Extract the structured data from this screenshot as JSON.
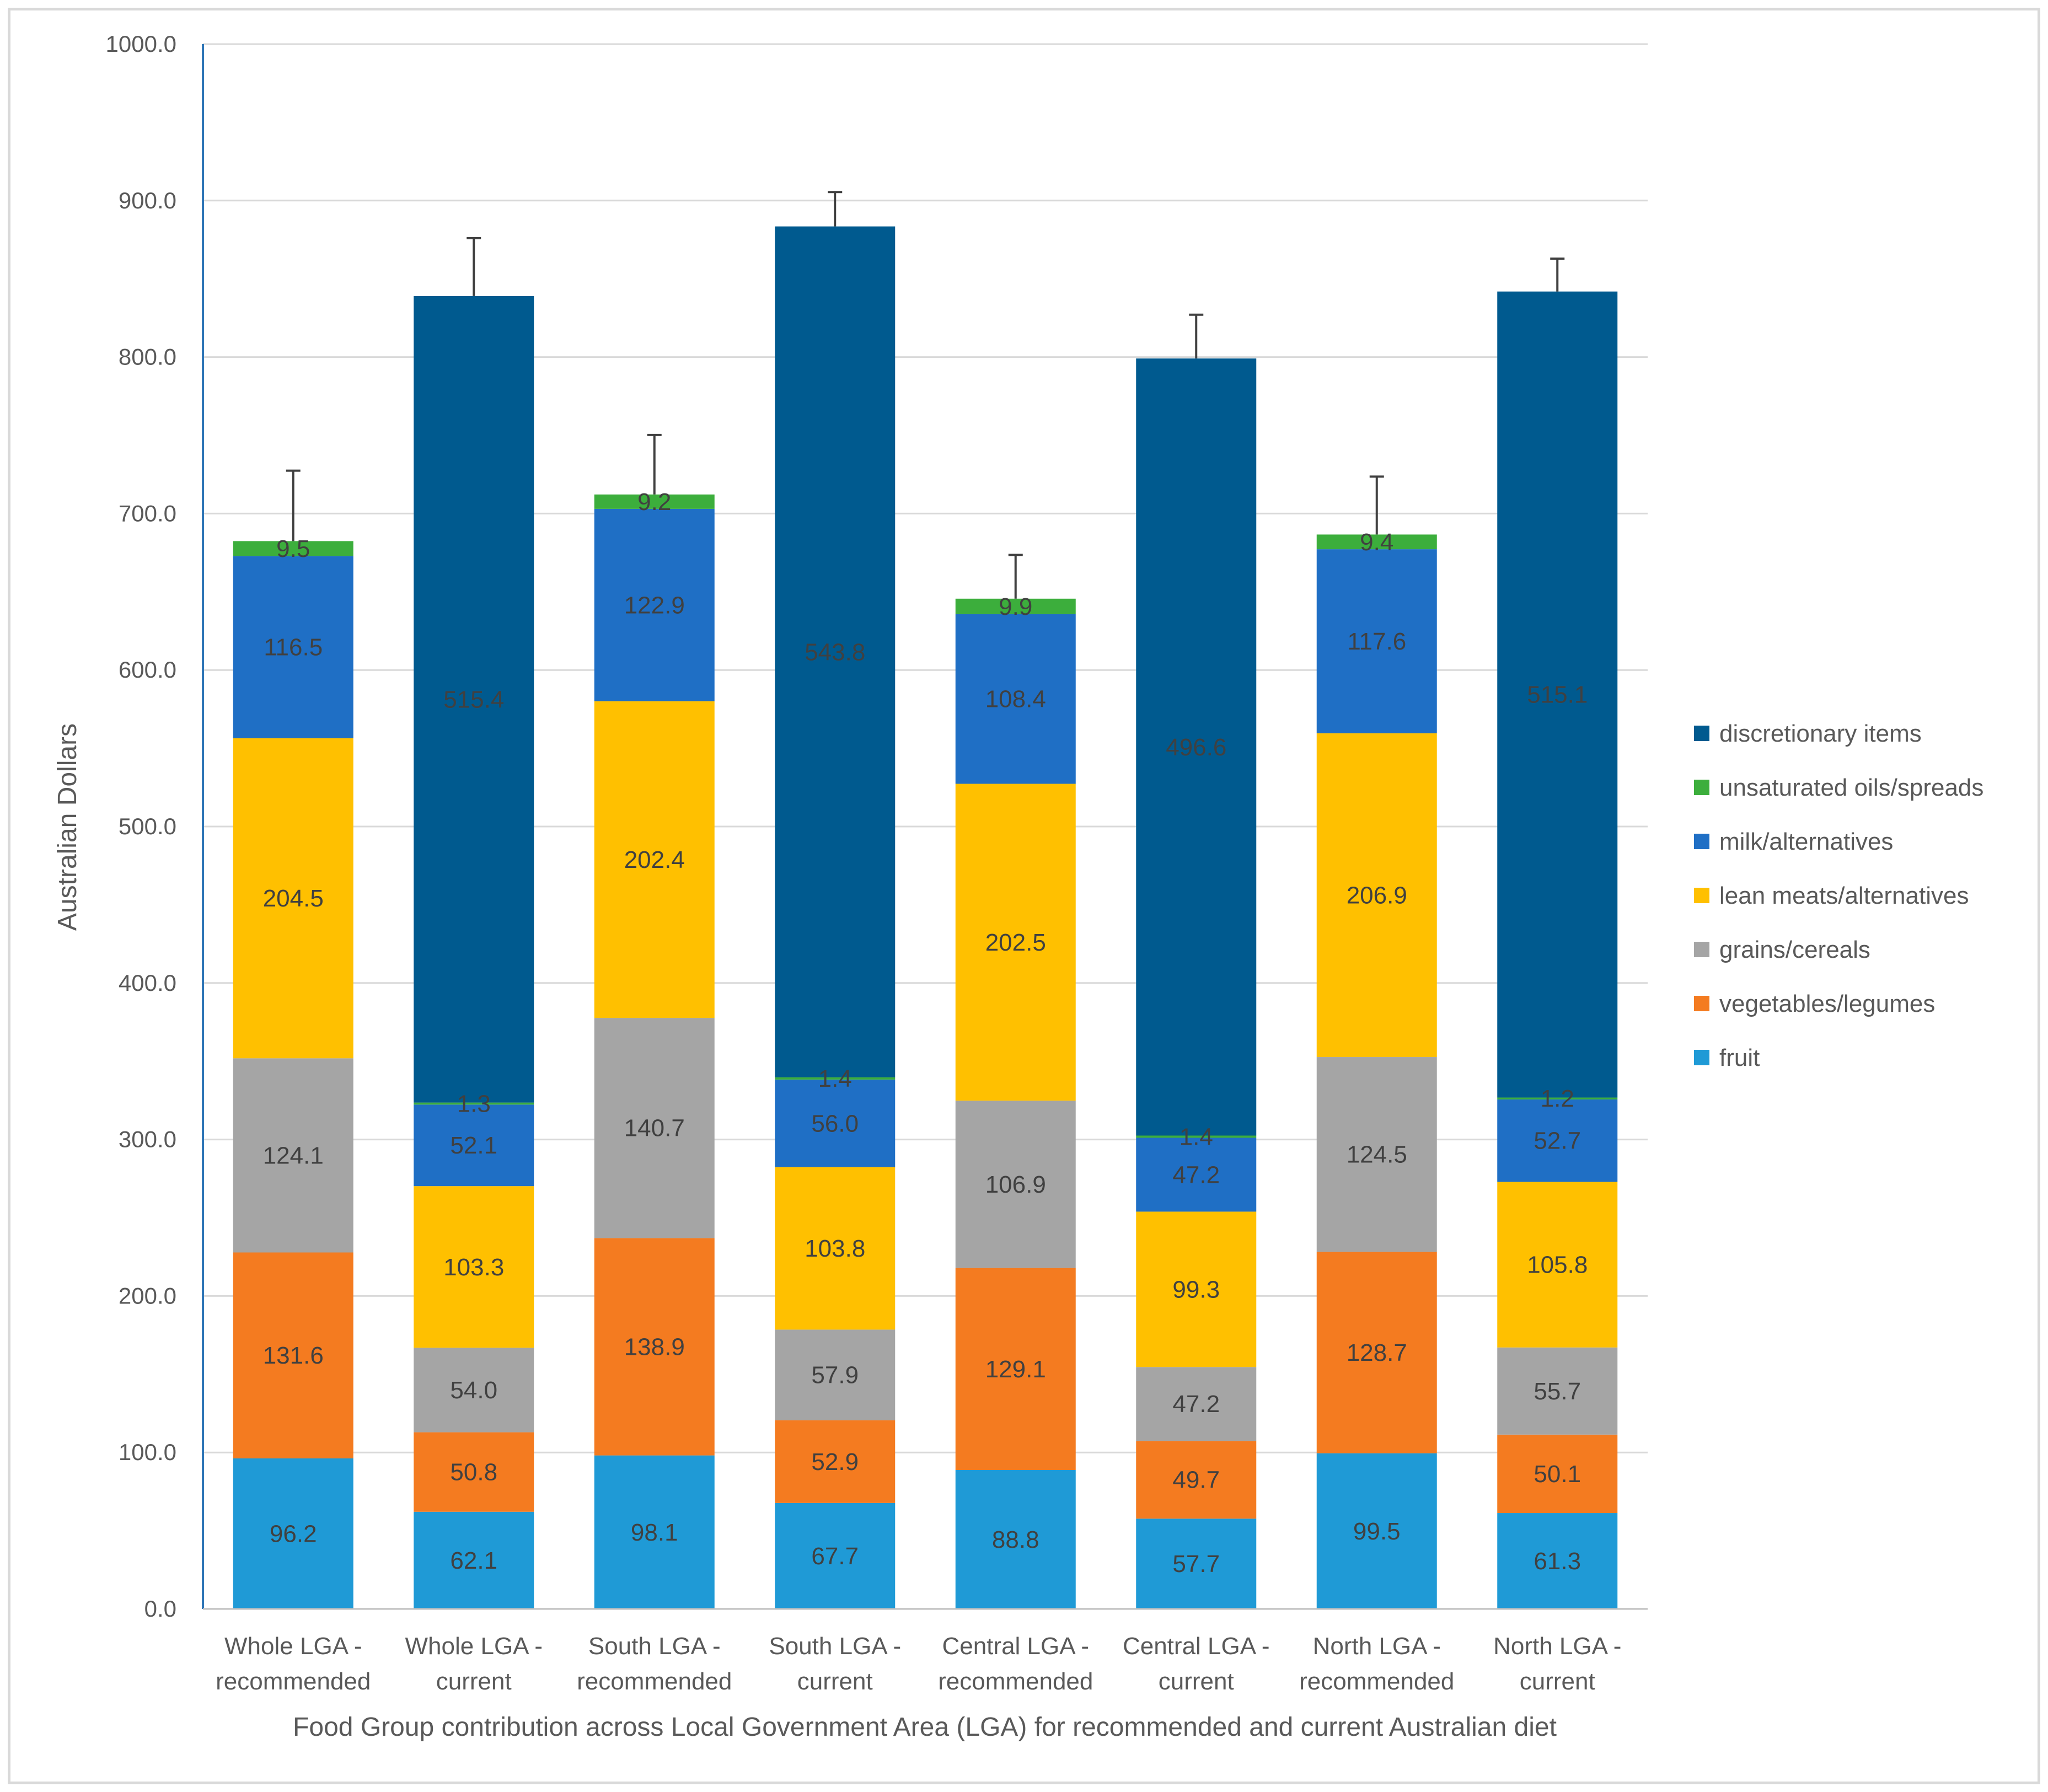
{
  "chart_data": {
    "type": "bar",
    "stacked": true,
    "xlabel": "Food Group contribution across Local Government Area (LGA) for recommended and current Australian diet",
    "ylabel": "Australian Dollars",
    "ylim": [
      0,
      1000
    ],
    "yticks": [
      "0.0",
      "100.0",
      "200.0",
      "300.0",
      "400.0",
      "500.0",
      "600.0",
      "700.0",
      "800.0",
      "900.0",
      "1000.0"
    ],
    "grid": true,
    "legend_position": "right",
    "categories": [
      [
        "Whole LGA -",
        "recommended"
      ],
      [
        "Whole LGA -",
        "current"
      ],
      [
        "South LGA -",
        "recommended"
      ],
      [
        "South LGA -",
        "current"
      ],
      [
        "Central LGA -",
        "recommended"
      ],
      [
        "Central LGA -",
        "current"
      ],
      [
        "North LGA -",
        "recommended"
      ],
      [
        "North LGA -",
        "current"
      ]
    ],
    "series": [
      {
        "name": "fruit",
        "color": "#1f9ad6",
        "values": [
          96.2,
          62.1,
          98.1,
          67.7,
          88.8,
          57.7,
          99.5,
          61.3
        ],
        "labels": [
          "96.2",
          "62.1",
          "98.1",
          "67.7",
          "88.8",
          "57.7",
          "99.5",
          "61.3"
        ]
      },
      {
        "name": "vegetables/legumes",
        "color": "#f47b20",
        "values": [
          131.6,
          50.8,
          138.9,
          52.9,
          129.1,
          49.7,
          128.7,
          50.1
        ],
        "labels": [
          "131.6",
          "50.8",
          "138.9",
          "52.9",
          "129.1",
          "49.7",
          "128.7",
          "50.1"
        ]
      },
      {
        "name": "grains/cereals",
        "color": "#a5a5a5",
        "values": [
          124.1,
          54.0,
          140.7,
          57.9,
          106.9,
          47.2,
          124.5,
          55.7
        ],
        "labels": [
          "124.1",
          "54.0",
          "140.7",
          "57.9",
          "106.9",
          "47.2",
          "124.5",
          "55.7"
        ]
      },
      {
        "name": "lean meats/alternatives",
        "color": "#ffc000",
        "values": [
          204.5,
          103.3,
          202.4,
          103.8,
          202.5,
          99.3,
          206.9,
          105.8
        ],
        "labels": [
          "204.5",
          "103.3",
          "202.4",
          "103.8",
          "202.5",
          "99.3",
          "206.9",
          "105.8"
        ]
      },
      {
        "name": "milk/alternatives",
        "color": "#1f6fc5",
        "values": [
          116.5,
          52.1,
          122.9,
          56.0,
          108.4,
          47.2,
          117.6,
          52.7
        ],
        "labels": [
          "116.5",
          "52.1",
          "122.9",
          "56.0",
          "108.4",
          "47.2",
          "117.6",
          "52.7"
        ]
      },
      {
        "name": "unsaturated oils/spreads",
        "color": "#3cae3c",
        "values": [
          9.5,
          1.3,
          9.2,
          1.4,
          9.9,
          1.4,
          9.4,
          1.2
        ],
        "labels": [
          "9.5",
          "1.3",
          "9.2",
          "1.4",
          "9.9",
          "1.4",
          "9.4",
          "1.2"
        ]
      },
      {
        "name": "discretionary items",
        "color": "#005a8f",
        "values": [
          0,
          515.4,
          0,
          543.8,
          0,
          496.6,
          0,
          515.1
        ],
        "labels": [
          "",
          "515.4",
          "",
          "543.8",
          "",
          "496.6",
          "",
          "515.1"
        ]
      }
    ],
    "error_bars": [
      45,
      37,
      38,
      22,
      28,
      28,
      37,
      21
    ],
    "legend_order": [
      "discretionary items",
      "unsaturated oils/spreads",
      "milk/alternatives",
      "lean meats/alternatives",
      "grains/cereals",
      "vegetables/legumes",
      "fruit"
    ]
  }
}
